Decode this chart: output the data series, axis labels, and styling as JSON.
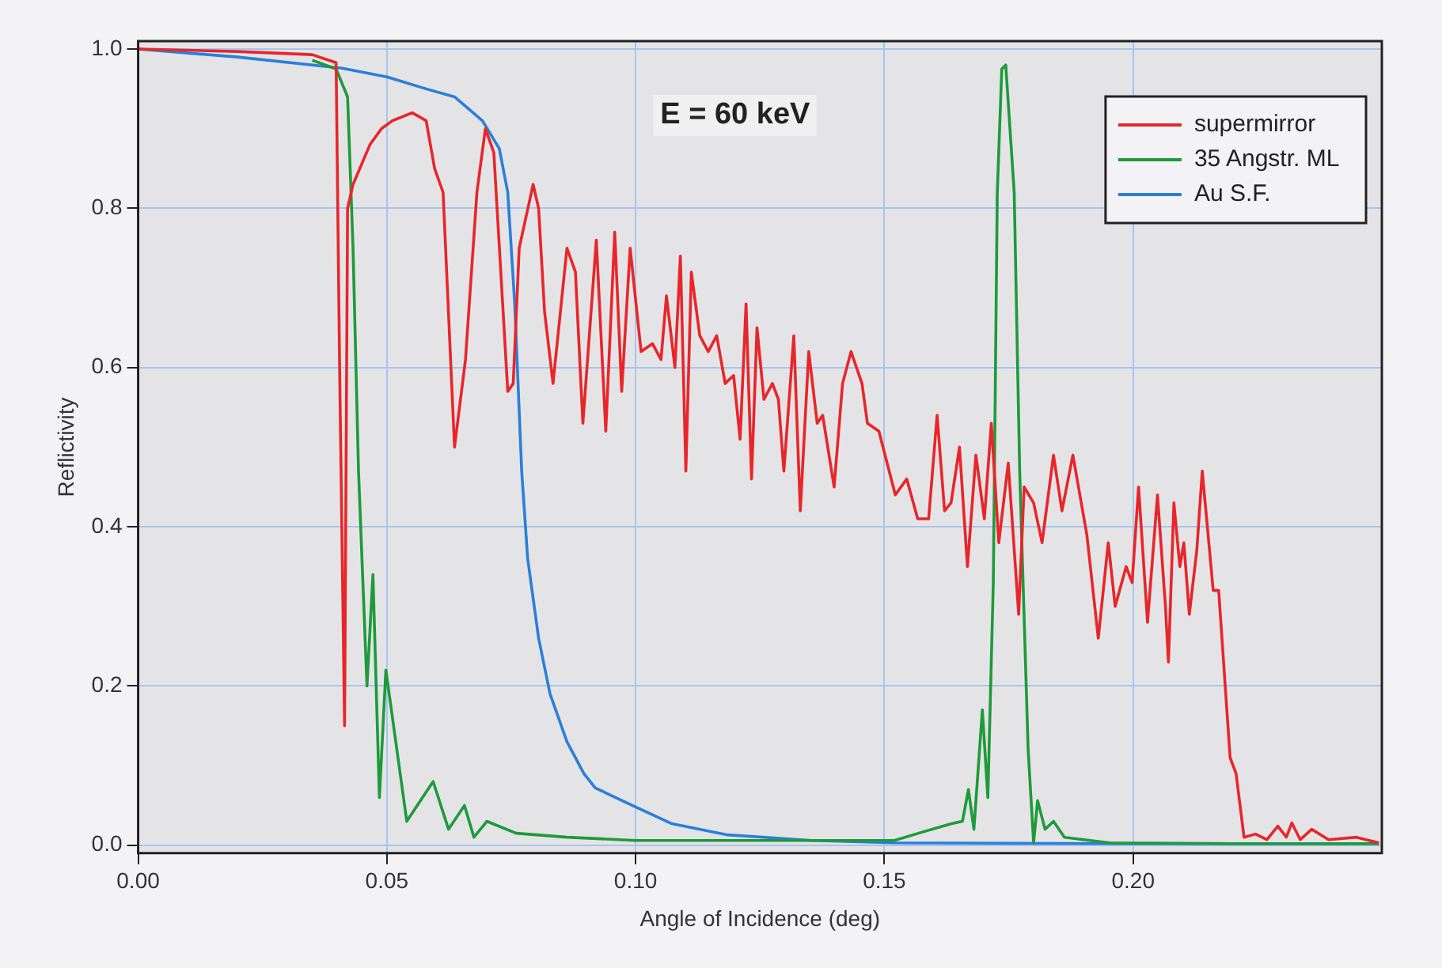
{
  "chart_data": {
    "type": "line",
    "xlabel": "Angle of Incidence (deg)",
    "ylabel": "Reflictivity",
    "annotations": [
      "E = 60 keV"
    ],
    "xlim": [
      0,
      0.25
    ],
    "ylim": [
      -0.01,
      1.01
    ],
    "xticks": [
      {
        "value": 0,
        "label": "0.00"
      },
      {
        "value": 0.05,
        "label": "0.05"
      },
      {
        "value": 0.1,
        "label": "0.10"
      },
      {
        "value": 0.15,
        "label": "0.15"
      },
      {
        "value": 0.2,
        "label": "0.20"
      }
    ],
    "yticks": [
      {
        "value": 0,
        "label": "0.0"
      },
      {
        "value": 0.2,
        "label": "0.2"
      },
      {
        "value": 0.4,
        "label": "0.4"
      },
      {
        "value": 0.6,
        "label": "0.6"
      },
      {
        "value": 0.8,
        "label": "0.8"
      },
      {
        "value": 1,
        "label": "1.0"
      }
    ],
    "grid": true,
    "legend": "top right",
    "marker": "none",
    "line_style": "solid",
    "series": [
      {
        "name": "supermirror",
        "color": "#e8262a",
        "x": [
          0,
          0.02,
          0.035,
          0.0398,
          0.0405,
          0.0415,
          0.0421,
          0.0432,
          0.0466,
          0.0489,
          0.0511,
          0.0551,
          0.0579,
          0.0596,
          0.0613,
          0.0636,
          0.0658,
          0.0681,
          0.0698,
          0.0715,
          0.0743,
          0.0754,
          0.0766,
          0.0794,
          0.0805,
          0.0817,
          0.0834,
          0.0862,
          0.0879,
          0.0894,
          0.0921,
          0.094,
          0.0958,
          0.0972,
          0.0989,
          0.1011,
          0.1034,
          0.1051,
          0.1062,
          0.1079,
          0.109,
          0.1101,
          0.1112,
          0.1129,
          0.1146,
          0.1163,
          0.118,
          0.1197,
          0.121,
          0.1222,
          0.1233,
          0.1244,
          0.1258,
          0.1275,
          0.1287,
          0.1298,
          0.1318,
          0.1331,
          0.1348,
          0.1365,
          0.1376,
          0.1399,
          0.1416,
          0.1433,
          0.1455,
          0.1466,
          0.1489,
          0.1522,
          0.1545,
          0.1567,
          0.1589,
          0.1606,
          0.1621,
          0.1634,
          0.1651,
          0.1667,
          0.1684,
          0.1701,
          0.1715,
          0.173,
          0.1749,
          0.177,
          0.1781,
          0.18,
          0.1817,
          0.184,
          0.1857,
          0.1879,
          0.1907,
          0.193,
          0.195,
          0.1964,
          0.1986,
          0.1998,
          0.2011,
          0.2029,
          0.2049,
          0.2065,
          0.2071,
          0.2082,
          0.2094,
          0.2102,
          0.2113,
          0.2128,
          0.2139,
          0.2161,
          0.2172,
          0.2195,
          0.2207,
          0.2223,
          0.2246,
          0.2269,
          0.2291,
          0.2308,
          0.2319,
          0.2336,
          0.2359,
          0.2393,
          0.2449,
          0.2494
        ],
        "values": [
          1.0,
          0.997,
          0.993,
          0.983,
          0.6,
          0.15,
          0.8,
          0.83,
          0.88,
          0.9,
          0.91,
          0.92,
          0.91,
          0.85,
          0.82,
          0.5,
          0.61,
          0.82,
          0.9,
          0.87,
          0.57,
          0.58,
          0.75,
          0.83,
          0.8,
          0.67,
          0.58,
          0.75,
          0.72,
          0.53,
          0.76,
          0.52,
          0.77,
          0.57,
          0.75,
          0.62,
          0.63,
          0.61,
          0.69,
          0.6,
          0.74,
          0.47,
          0.72,
          0.64,
          0.62,
          0.64,
          0.58,
          0.59,
          0.51,
          0.68,
          0.46,
          0.65,
          0.56,
          0.58,
          0.56,
          0.47,
          0.64,
          0.42,
          0.62,
          0.53,
          0.54,
          0.45,
          0.58,
          0.62,
          0.58,
          0.53,
          0.52,
          0.44,
          0.46,
          0.41,
          0.41,
          0.54,
          0.42,
          0.43,
          0.5,
          0.35,
          0.49,
          0.41,
          0.53,
          0.38,
          0.48,
          0.29,
          0.45,
          0.43,
          0.38,
          0.49,
          0.42,
          0.49,
          0.39,
          0.26,
          0.38,
          0.3,
          0.35,
          0.33,
          0.45,
          0.28,
          0.44,
          0.3,
          0.23,
          0.43,
          0.35,
          0.38,
          0.29,
          0.37,
          0.47,
          0.32,
          0.32,
          0.11,
          0.09,
          0.01,
          0.014,
          0.007,
          0.024,
          0.01,
          0.028,
          0.007,
          0.02,
          0.007,
          0.01,
          0.003
        ]
      },
      {
        "name": "35 Angstr. ML",
        "color": "#1e9a3a",
        "x": [
          0.035,
          0.0398,
          0.0421,
          0.0432,
          0.0443,
          0.046,
          0.0472,
          0.0485,
          0.0498,
          0.054,
          0.0593,
          0.0624,
          0.0656,
          0.0675,
          0.0701,
          0.076,
          0.0862,
          0.1,
          0.12,
          0.152,
          0.1579,
          0.1635,
          0.1657,
          0.1669,
          0.168,
          0.1697,
          0.1708,
          0.1719,
          0.1727,
          0.1736,
          0.1744,
          0.1761,
          0.1772,
          0.1789,
          0.18,
          0.1808,
          0.1823,
          0.184,
          0.1862,
          0.1953,
          0.22,
          0.2494
        ],
        "values": [
          0.986,
          0.975,
          0.94,
          0.75,
          0.47,
          0.2,
          0.34,
          0.06,
          0.22,
          0.03,
          0.08,
          0.02,
          0.05,
          0.01,
          0.03,
          0.015,
          0.01,
          0.006,
          0.006,
          0.006,
          0.017,
          0.027,
          0.03,
          0.07,
          0.02,
          0.17,
          0.06,
          0.33,
          0.82,
          0.975,
          0.98,
          0.82,
          0.47,
          0.12,
          0.003,
          0.056,
          0.02,
          0.03,
          0.01,
          0.003,
          0.002,
          0.002
        ]
      },
      {
        "name": "Au S.F.",
        "color": "#2a7fd8",
        "x": [
          0,
          0.02,
          0.041,
          0.05,
          0.0579,
          0.0636,
          0.0692,
          0.0726,
          0.0743,
          0.0757,
          0.0771,
          0.0783,
          0.0805,
          0.0828,
          0.0862,
          0.0896,
          0.0919,
          0.1,
          0.1073,
          0.1185,
          0.1354,
          0.152,
          0.2,
          0.2494
        ],
        "values": [
          1.0,
          0.99,
          0.976,
          0.965,
          0.95,
          0.94,
          0.91,
          0.875,
          0.82,
          0.68,
          0.47,
          0.36,
          0.26,
          0.19,
          0.13,
          0.09,
          0.072,
          0.048,
          0.027,
          0.013,
          0.006,
          0.003,
          0.002,
          0.002
        ]
      }
    ]
  }
}
